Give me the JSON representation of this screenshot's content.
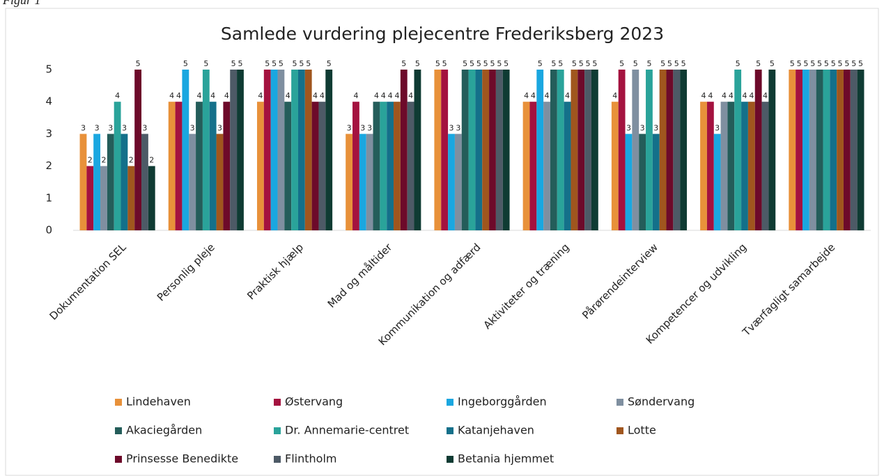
{
  "caption": "Figur 1",
  "chart_data": {
    "type": "bar",
    "title": "Samlede vurdering plejecentre Frederiksberg 2023",
    "categories": [
      "Dokumentation SEL",
      "Personlig pleje",
      "Praktisk hjælp",
      "Mad og måltider",
      "Kommunikation og adfærd",
      "Aktiviteter og træning",
      "Pårørendeinterview",
      "Kompetencer og udvikling",
      "Tværfagligt samarbejde"
    ],
    "series": [
      {
        "name": "Lindehaven",
        "color": "#e8913a",
        "values": [
          3,
          4,
          4,
          3,
          5,
          4,
          4,
          4,
          5
        ]
      },
      {
        "name": "Østervang",
        "color": "#a4123f",
        "values": [
          2,
          4,
          5,
          4,
          5,
          4,
          5,
          4,
          5
        ]
      },
      {
        "name": "Ingeborggården",
        "color": "#1aa7e0",
        "values": [
          3,
          5,
          5,
          3,
          3,
          5,
          3,
          3,
          5
        ]
      },
      {
        "name": "Søndervang",
        "color": "#7f8fa0",
        "values": [
          2,
          3,
          5,
          3,
          3,
          4,
          5,
          4,
          5
        ]
      },
      {
        "name": "Akaciegården",
        "color": "#245d5a",
        "values": [
          3,
          4,
          4,
          4,
          5,
          5,
          3,
          4,
          5
        ]
      },
      {
        "name": "Dr. Annemarie-centret",
        "color": "#2aa39a",
        "values": [
          4,
          5,
          5,
          4,
          5,
          5,
          5,
          5,
          5
        ]
      },
      {
        "name": "Katanjehaven",
        "color": "#14708a",
        "values": [
          3,
          4,
          5,
          4,
          5,
          4,
          3,
          4,
          5
        ]
      },
      {
        "name": "Lotte",
        "color": "#a0561e",
        "values": [
          2,
          3,
          5,
          4,
          5,
          5,
          5,
          4,
          5
        ]
      },
      {
        "name": "Prinsesse Benedikte",
        "color": "#6d0a2a",
        "values": [
          5,
          4,
          4,
          5,
          5,
          5,
          5,
          5,
          5
        ]
      },
      {
        "name": "Flintholm",
        "color": "#4d5a66",
        "values": [
          3,
          5,
          4,
          4,
          5,
          5,
          5,
          4,
          5
        ]
      },
      {
        "name": "Betania hjemmet",
        "color": "#0f3b33",
        "values": [
          2,
          5,
          5,
          5,
          5,
          5,
          5,
          5,
          5
        ]
      }
    ],
    "ylim": [
      0,
      5
    ],
    "yticks": [
      0,
      1,
      2,
      3,
      4,
      5
    ],
    "grid": false,
    "legend": "bottom"
  }
}
